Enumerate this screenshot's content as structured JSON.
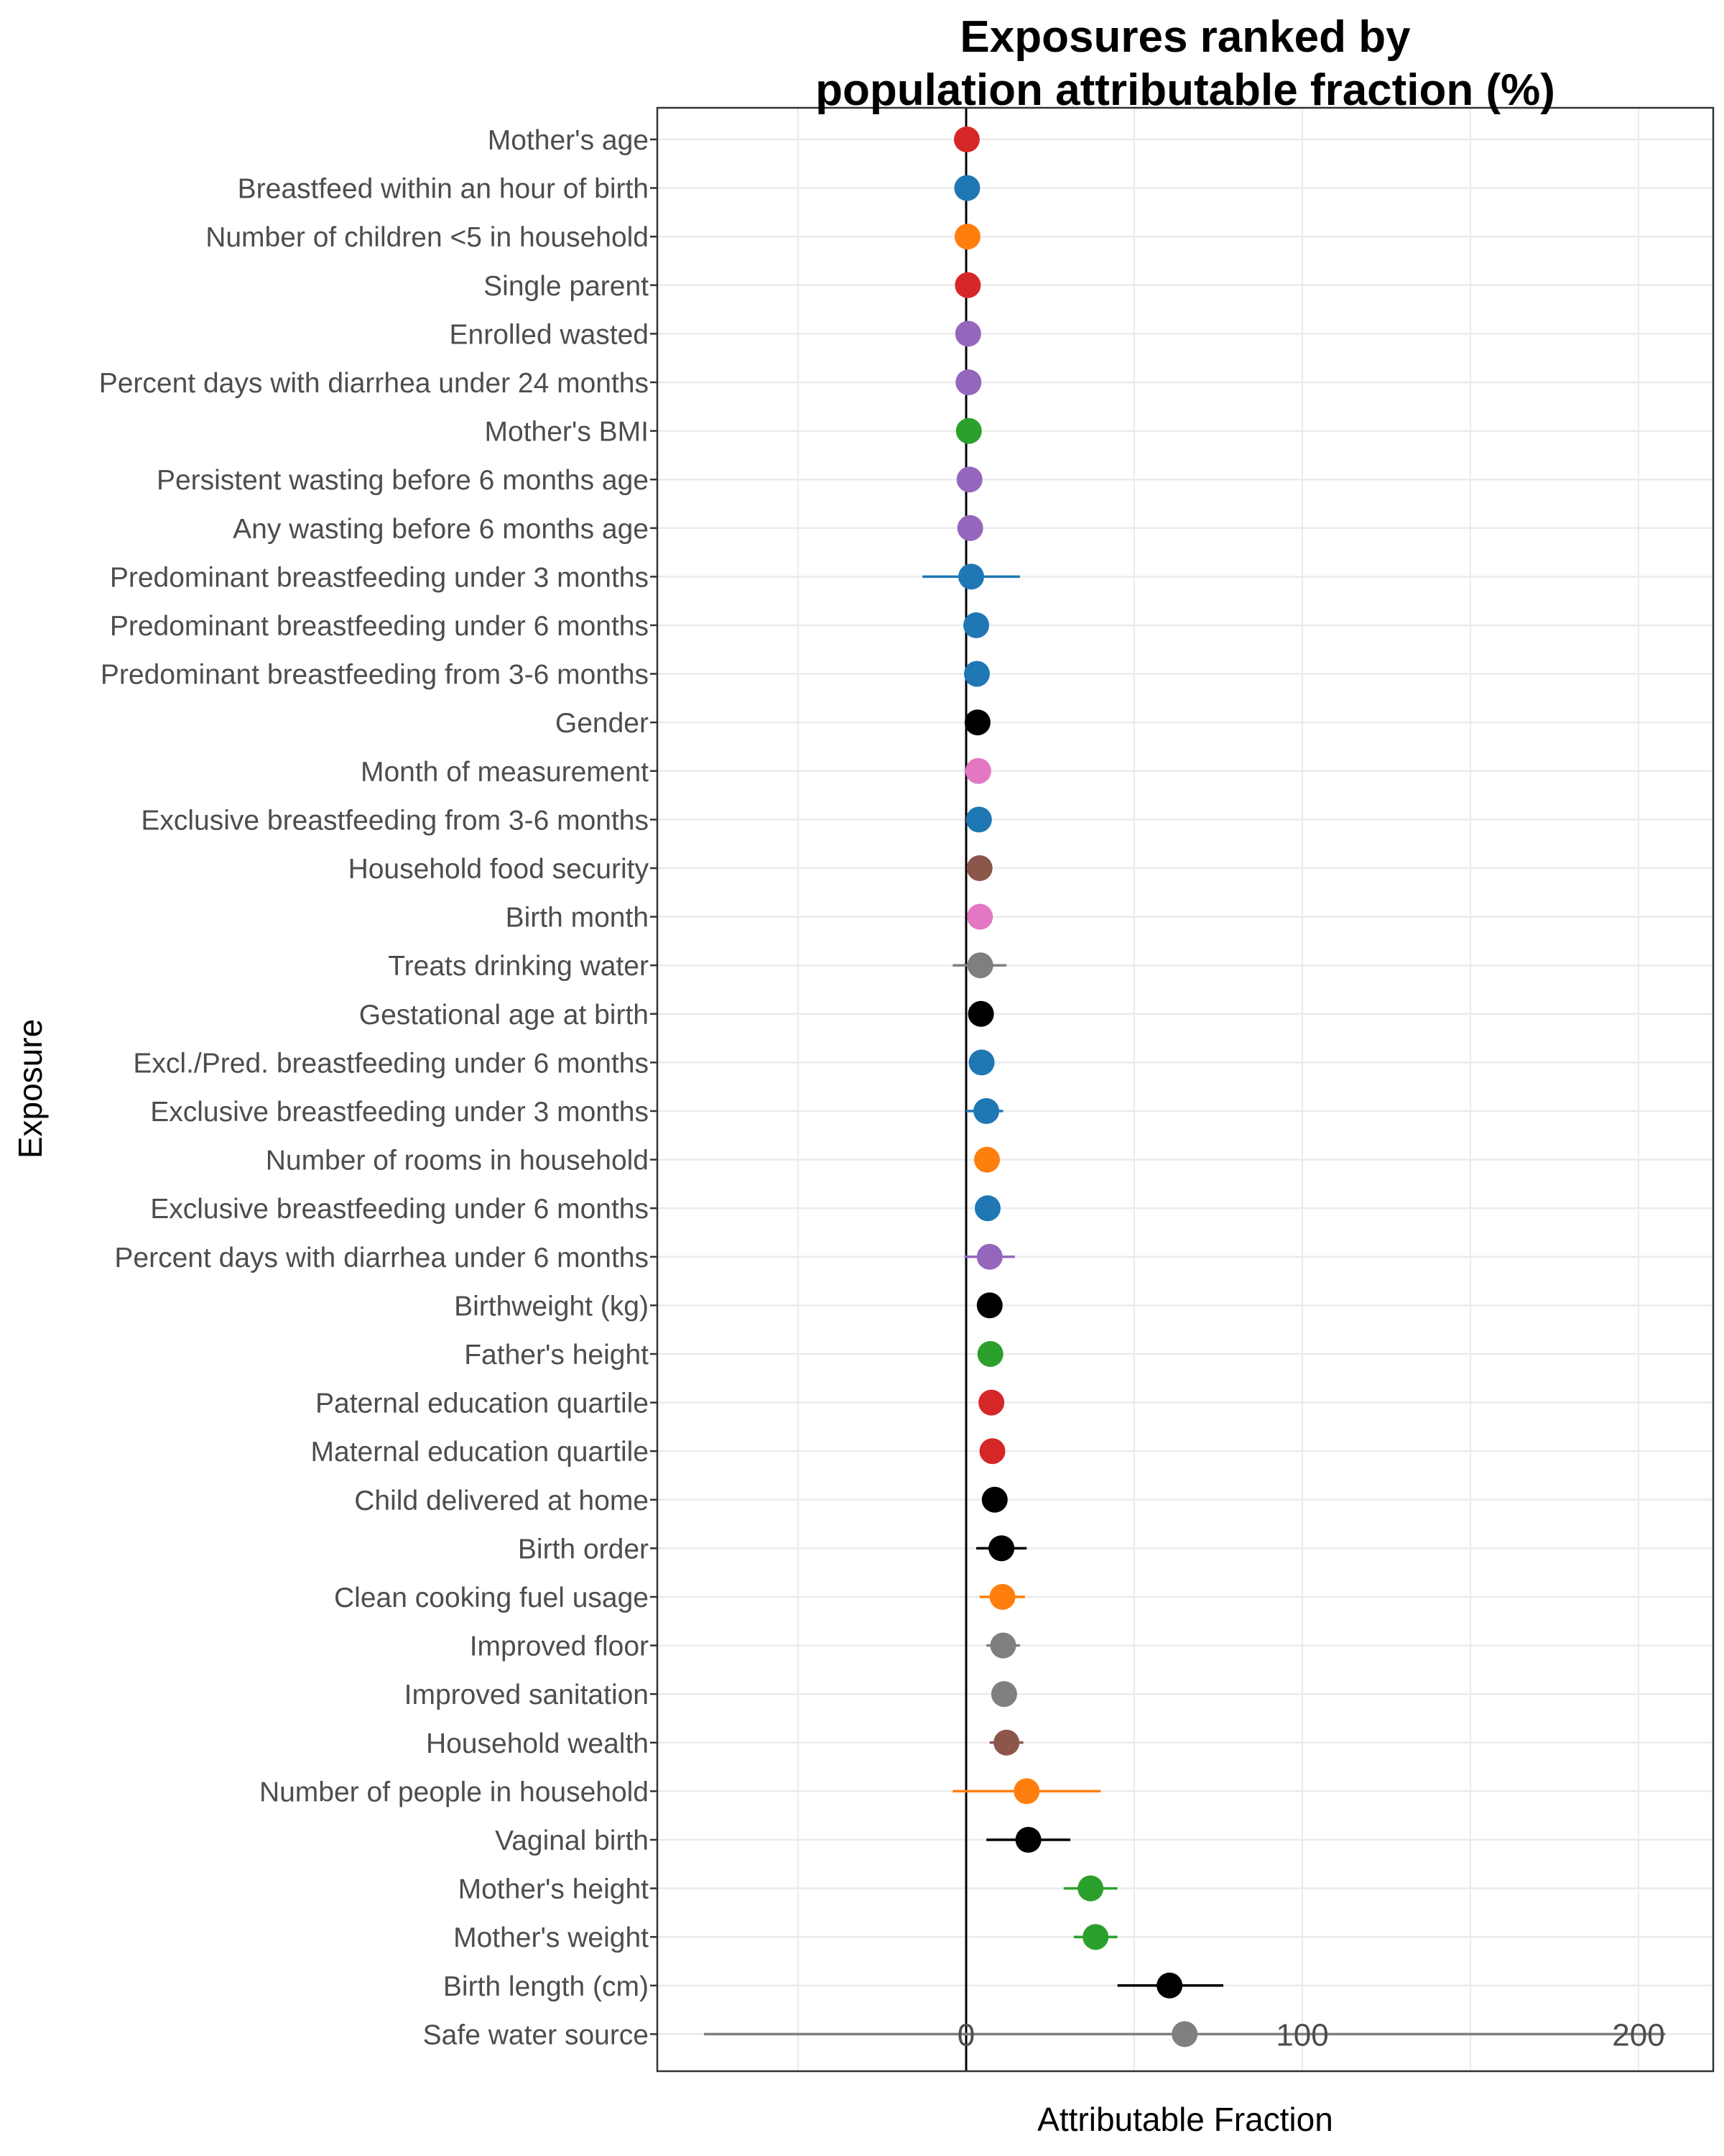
{
  "chart_data": {
    "type": "scatter",
    "title_lines": [
      "Exposures ranked by",
      "population attributable fraction (%)"
    ],
    "xlabel": "Attributable Fraction",
    "ylabel": "Exposure",
    "xlim": [
      -92,
      222
    ],
    "xticks": [
      0,
      100,
      200
    ],
    "reference_line": 0,
    "grid": true,
    "legend": "none",
    "colors": {
      "red": "#d62728",
      "blue": "#1f77b4",
      "orange": "#ff7f0e",
      "purple": "#9467bd",
      "green": "#2ca02c",
      "black": "#000000",
      "pink": "#e377c2",
      "brown": "#8c564b",
      "gray": "#7f7f7f"
    },
    "exposures": [
      {
        "label": "Mother's age",
        "est": 0.2,
        "lower": null,
        "upper": null,
        "color": "red"
      },
      {
        "label": "Breastfeed within an hour of birth",
        "est": 0.3,
        "lower": null,
        "upper": null,
        "color": "blue"
      },
      {
        "label": "Number of children <5 in household",
        "est": 0.4,
        "lower": null,
        "upper": null,
        "color": "orange"
      },
      {
        "label": "Single parent",
        "est": 0.5,
        "lower": null,
        "upper": null,
        "color": "red"
      },
      {
        "label": "Enrolled wasted",
        "est": 0.6,
        "lower": null,
        "upper": null,
        "color": "purple"
      },
      {
        "label": "Percent days with diarrhea under 24 months",
        "est": 0.7,
        "lower": null,
        "upper": null,
        "color": "purple"
      },
      {
        "label": "Mother's BMI",
        "est": 0.8,
        "lower": null,
        "upper": null,
        "color": "green"
      },
      {
        "label": "Persistent wasting before 6 months age",
        "est": 1.0,
        "lower": null,
        "upper": null,
        "color": "purple"
      },
      {
        "label": "Any wasting before 6 months age",
        "est": 1.2,
        "lower": null,
        "upper": null,
        "color": "purple"
      },
      {
        "label": "Predominant breastfeeding under 3 months",
        "est": 1.5,
        "lower": -13,
        "upper": 16,
        "color": "blue"
      },
      {
        "label": "Predominant breastfeeding under 6 months",
        "est": 3,
        "lower": null,
        "upper": null,
        "color": "blue"
      },
      {
        "label": "Predominant breastfeeding from 3-6 months",
        "est": 3.2,
        "lower": -0.5,
        "upper": 6,
        "color": "blue"
      },
      {
        "label": "Gender",
        "est": 3.4,
        "lower": null,
        "upper": null,
        "color": "black"
      },
      {
        "label": "Month of measurement",
        "est": 3.6,
        "lower": -0.5,
        "upper": 7,
        "color": "pink"
      },
      {
        "label": "Exclusive breastfeeding from 3-6 months",
        "est": 3.8,
        "lower": null,
        "upper": null,
        "color": "blue"
      },
      {
        "label": "Household food security",
        "est": 4,
        "lower": null,
        "upper": null,
        "color": "brown"
      },
      {
        "label": "Birth month",
        "est": 4.1,
        "lower": null,
        "upper": null,
        "color": "pink"
      },
      {
        "label": "Treats drinking water",
        "est": 4.2,
        "lower": -4,
        "upper": 12,
        "color": "gray"
      },
      {
        "label": "Gestational age at birth",
        "est": 4.4,
        "lower": null,
        "upper": null,
        "color": "black"
      },
      {
        "label": "Excl./Pred. breastfeeding under 6 months",
        "est": 4.6,
        "lower": null,
        "upper": null,
        "color": "blue"
      },
      {
        "label": "Exclusive breastfeeding under 3 months",
        "est": 6,
        "lower": 0,
        "upper": 11,
        "color": "blue"
      },
      {
        "label": "Number of rooms in household",
        "est": 6.2,
        "lower": null,
        "upper": null,
        "color": "orange"
      },
      {
        "label": "Exclusive breastfeeding under 6 months",
        "est": 6.4,
        "lower": null,
        "upper": null,
        "color": "blue"
      },
      {
        "label": "Percent days with diarrhea under 6 months",
        "est": 7,
        "lower": -0.5,
        "upper": 14.5,
        "color": "purple"
      },
      {
        "label": "Birthweight (kg)",
        "est": 7,
        "lower": null,
        "upper": null,
        "color": "black"
      },
      {
        "label": "Father's height",
        "est": 7.2,
        "lower": null,
        "upper": null,
        "color": "green"
      },
      {
        "label": "Paternal education quartile",
        "est": 7.5,
        "lower": null,
        "upper": null,
        "color": "red"
      },
      {
        "label": "Maternal education quartile",
        "est": 7.8,
        "lower": null,
        "upper": null,
        "color": "red"
      },
      {
        "label": "Child delivered at home",
        "est": 8.5,
        "lower": null,
        "upper": null,
        "color": "black"
      },
      {
        "label": "Birth order",
        "est": 10.5,
        "lower": 3,
        "upper": 18,
        "color": "black"
      },
      {
        "label": "Clean cooking fuel usage",
        "est": 10.8,
        "lower": 4,
        "upper": 17.5,
        "color": "orange"
      },
      {
        "label": "Improved floor",
        "est": 11,
        "lower": 6,
        "upper": 16,
        "color": "gray"
      },
      {
        "label": "Improved sanitation",
        "est": 11.3,
        "lower": null,
        "upper": null,
        "color": "gray"
      },
      {
        "label": "Household wealth",
        "est": 12,
        "lower": 7,
        "upper": 17,
        "color": "brown"
      },
      {
        "label": "Number of people in household",
        "est": 18,
        "lower": -4,
        "upper": 40,
        "color": "orange"
      },
      {
        "label": "Vaginal birth",
        "est": 18.5,
        "lower": 6,
        "upper": 31,
        "color": "black"
      },
      {
        "label": "Mother's height",
        "est": 37,
        "lower": 29,
        "upper": 45,
        "color": "green"
      },
      {
        "label": "Mother's weight",
        "est": 38.5,
        "lower": 32,
        "upper": 45,
        "color": "green"
      },
      {
        "label": "Birth length (cm)",
        "est": 60.5,
        "lower": 45,
        "upper": 76.5,
        "color": "black"
      },
      {
        "label": "Safe water source",
        "est": 65,
        "lower": -78,
        "upper": 208,
        "color": "gray"
      }
    ]
  }
}
